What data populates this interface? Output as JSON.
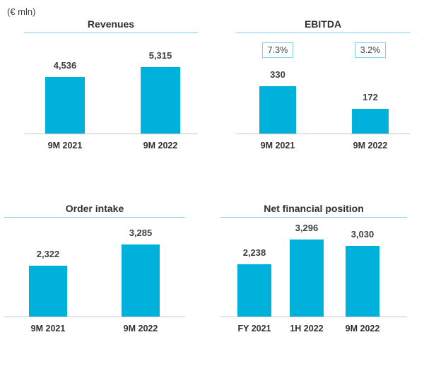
{
  "unit_label": "(€ mln)",
  "chart_data": [
    {
      "type": "bar",
      "title": "Revenues",
      "categories": [
        "9M 2021",
        "9M 2022"
      ],
      "values": [
        4536,
        5315
      ],
      "value_labels": [
        "4,536",
        "5,315"
      ],
      "color": "#00b1dc"
    },
    {
      "type": "bar",
      "title": "EBITDA",
      "categories": [
        "9M 2021",
        "9M 2022"
      ],
      "values": [
        330,
        172
      ],
      "value_labels": [
        "330",
        "172"
      ],
      "margin_labels": [
        "7.3%",
        "3.2%"
      ],
      "color": "#00b1dc"
    },
    {
      "type": "bar",
      "title": "Order intake",
      "categories": [
        "9M 2021",
        "9M 2022"
      ],
      "values": [
        2322,
        3285
      ],
      "value_labels": [
        "2,322",
        "3,285"
      ],
      "color": "#00b1dc"
    },
    {
      "type": "bar",
      "title": "Net financial position",
      "categories": [
        "FY 2021",
        "1H 2022",
        "9M 2022"
      ],
      "values": [
        2238,
        3296,
        3030
      ],
      "value_labels": [
        "2,238",
        "3,296",
        "3,030"
      ],
      "color": "#00b1dc"
    }
  ]
}
